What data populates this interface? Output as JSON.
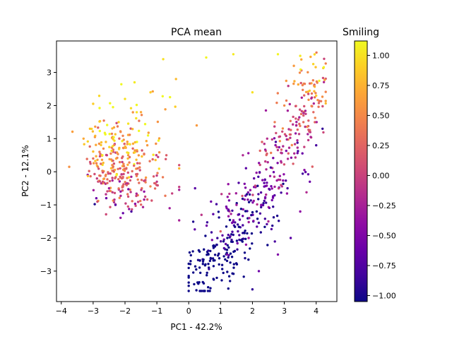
{
  "chart_data": {
    "type": "scatter",
    "title": "PCA mean",
    "xlabel": "PC1 - 42.2%",
    "ylabel": "PC2 - 12.1%",
    "xlim": [
      -4.15,
      4.65
    ],
    "ylim": [
      -3.92,
      3.95
    ],
    "xticks": [
      -4,
      -3,
      -2,
      -1,
      0,
      1,
      2,
      3,
      4
    ],
    "xtick_labels": [
      "−4",
      "−3",
      "−2",
      "−1",
      "0",
      "1",
      "2",
      "3",
      "4"
    ],
    "yticks": [
      -3,
      -2,
      -1,
      0,
      1,
      2,
      3
    ],
    "ytick_labels": [
      "−3",
      "−2",
      "−1",
      "0",
      "1",
      "2",
      "3"
    ],
    "grid": false,
    "colormap": "plasma",
    "colorbar": {
      "label": "Smiling",
      "range": [
        -1.05,
        1.12
      ],
      "ticks": [
        1.0,
        0.75,
        0.5,
        0.25,
        0.0,
        -0.25,
        -0.5,
        -0.75,
        -1.0
      ],
      "tick_labels": [
        "1.00",
        "0.75",
        "0.50",
        "0.25",
        "0.00",
        "−0.25",
        "−0.50",
        "−0.75",
        "−1.00"
      ]
    },
    "clusters": [
      {
        "name": "left",
        "point_count": 320,
        "x_range": [
          -3.8,
          -0.3
        ],
        "y_range": [
          -1.5,
          3.5
        ],
        "center": [
          -2.2,
          0.1
        ],
        "mean_color_value": 0.35
      },
      {
        "name": "right",
        "point_count": 480,
        "x_range": [
          0.0,
          4.3
        ],
        "y_range": [
          -3.6,
          3.6
        ],
        "center": [
          2.4,
          -0.2
        ],
        "mean_color_value": -0.45
      }
    ],
    "points": [
      [
        -3.75,
        0.15,
        0.55
      ],
      [
        -3.3,
        1.0,
        0.7
      ],
      [
        -3.1,
        1.3,
        0.85
      ],
      [
        -3.0,
        0.4,
        0.3
      ],
      [
        -2.9,
        -0.8,
        -0.6
      ],
      [
        -2.8,
        0.6,
        0.4
      ],
      [
        -2.7,
        -0.3,
        0.1
      ],
      [
        -2.6,
        0.9,
        0.8
      ],
      [
        -2.5,
        -0.5,
        -0.3
      ],
      [
        -2.4,
        0.2,
        0.5
      ],
      [
        -2.3,
        -1.0,
        -0.7
      ],
      [
        -2.2,
        1.5,
        0.9
      ],
      [
        -2.1,
        -0.2,
        0.2
      ],
      [
        -2.0,
        2.2,
        1.0
      ],
      [
        -1.9,
        0.5,
        0.6
      ],
      [
        -1.8,
        -1.2,
        -0.8
      ],
      [
        -1.7,
        2.7,
        1.05
      ],
      [
        -1.6,
        0.1,
        0.3
      ],
      [
        -1.5,
        1.8,
        0.7
      ],
      [
        -1.4,
        -0.6,
        -0.4
      ],
      [
        -1.3,
        0.8,
        0.6
      ],
      [
        -1.2,
        2.4,
        0.9
      ],
      [
        -1.0,
        -0.3,
        -0.1
      ],
      [
        -0.8,
        3.4,
        1.0
      ],
      [
        -0.7,
        0.5,
        0.2
      ],
      [
        -0.6,
        -1.1,
        -0.3
      ],
      [
        -0.4,
        2.8,
        0.8
      ],
      [
        -0.3,
        0.2,
        0.1
      ],
      [
        0.25,
        1.4,
        0.6
      ],
      [
        0.55,
        3.45,
        1.1
      ],
      [
        1.4,
        3.55,
        1.05
      ],
      [
        2.0,
        2.4,
        1.0
      ],
      [
        2.8,
        3.55,
        1.1
      ],
      [
        3.5,
        3.5,
        1.05
      ],
      [
        4.0,
        2.3,
        0.9
      ],
      [
        3.3,
        3.2,
        0.6
      ],
      [
        3.6,
        1.5,
        0.3
      ],
      [
        4.0,
        0.8,
        -0.8
      ],
      [
        4.2,
        1.3,
        -0.9
      ],
      [
        3.8,
        -0.3,
        -0.6
      ],
      [
        3.5,
        -1.2,
        -0.4
      ],
      [
        3.2,
        -2.0,
        -0.7
      ],
      [
        2.8,
        -2.5,
        -0.5
      ],
      [
        2.5,
        -1.5,
        -0.2
      ],
      [
        2.2,
        -3.0,
        -0.6
      ],
      [
        2.0,
        -3.55,
        -0.9
      ],
      [
        1.8,
        -2.2,
        -0.4
      ],
      [
        1.5,
        -1.0,
        -0.3
      ],
      [
        1.2,
        -2.5,
        -0.5
      ],
      [
        1.0,
        -1.8,
        0.2
      ],
      [
        0.7,
        -0.9,
        -0.6
      ],
      [
        0.4,
        -1.3,
        -0.1
      ],
      [
        0.2,
        -0.5,
        -0.7
      ],
      [
        1.7,
        0.5,
        -0.2
      ],
      [
        2.3,
        0.9,
        0.2
      ],
      [
        2.7,
        1.5,
        0.4
      ],
      [
        3.0,
        2.0,
        0.5
      ],
      [
        3.1,
        -0.5,
        -0.8
      ],
      [
        2.4,
        -0.8,
        -0.5
      ],
      [
        1.9,
        -1.4,
        -0.3
      ]
    ]
  }
}
